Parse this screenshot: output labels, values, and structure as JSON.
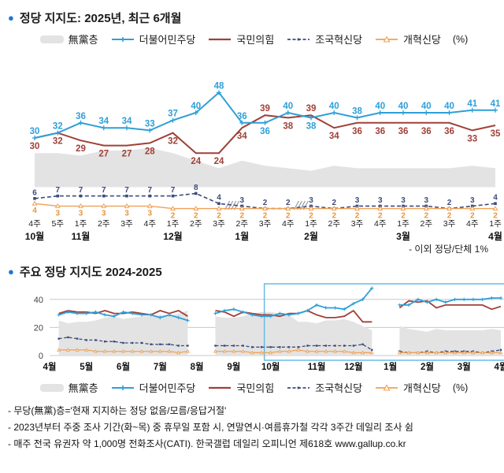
{
  "colors": {
    "bullet": "#1f78d1",
    "grid": "#c8c8c8",
    "highlight_box": "#66bce8",
    "hatch": "#9aa0a8",
    "axis_text": "#222222",
    "orange_label": "#e8963c",
    "blue": "#2f9fd8",
    "red": "#a04038",
    "navy": "#3c4b7d",
    "orange": "#f0a153",
    "gray_band": "#e3e3e3"
  },
  "header1": {
    "title": "정당 지지도: 2025년, 최근 6개월"
  },
  "header2": {
    "title": "주요 정당 지지도 2024-2025"
  },
  "legend_unit": "(%)",
  "footnotes": [
    "- 무당(無黨)층='현재 지지하는 정당 없음/모름/응답거절'",
    "- 2023년부터 주중 조사 기간(화~목) 중 휴무일 포함 시, 연말연시·여름휴가철 각각 3주간 데일리 조사 쉼",
    "- 매주 전국 유권자 약 1,000명 전화조사(CATI). 한국갤럽 데일리 오피니언 제618호 www.gallup.co.kr"
  ],
  "chart_data": [
    {
      "type": "line",
      "title": "정당 지지도: 2025년, 최근 6개월",
      "note": "- 이외 정당/단체 1%",
      "ylim": [
        0,
        50
      ],
      "band_floor": 10.5,
      "x_weeks": [
        "4주",
        "5주",
        "1주",
        "2주",
        "3주",
        "4주",
        "1주",
        "2주",
        "3주",
        "2주",
        "3주",
        "4주",
        "1주",
        "2주",
        "3주",
        "4주",
        "1주",
        "2주",
        "3주",
        "4주",
        "1주"
      ],
      "x_months": [
        {
          "label": "10월",
          "index": 0
        },
        {
          "label": "11월",
          "index": 2
        },
        {
          "label": "12월",
          "index": 6
        },
        {
          "label": "1월",
          "index": 9
        },
        {
          "label": "2월",
          "index": 12
        },
        {
          "label": "3월",
          "index": 16
        },
        {
          "label": "4월",
          "index": 20
        }
      ],
      "breaks_after_index": [
        8,
        11
      ],
      "series": [
        {
          "key": "mudang",
          "name": "無黨층",
          "color": "#e3e3e3",
          "swatch": "band",
          "values": [
            24,
            24,
            23,
            25,
            25,
            26,
            24,
            21,
            18,
            21,
            19,
            18,
            17,
            19,
            18,
            18,
            18,
            18,
            18,
            19,
            18
          ]
        },
        {
          "key": "minju",
          "name": "더불어민주당",
          "color": "#2f9fd8",
          "swatch": "line-plus",
          "values": [
            30,
            32,
            36,
            34,
            34,
            33,
            37,
            40,
            48,
            36,
            36,
            40,
            38,
            40,
            38,
            40,
            40,
            40,
            40,
            41,
            41
          ]
        },
        {
          "key": "kukhim",
          "name": "국민의힘",
          "color": "#a04038",
          "swatch": "line",
          "values": [
            30,
            32,
            29,
            27,
            27,
            28,
            32,
            24,
            24,
            34,
            39,
            38,
            39,
            34,
            36,
            36,
            36,
            36,
            36,
            33,
            35
          ]
        },
        {
          "key": "jokuk",
          "name": "조국혁신당",
          "color": "#3c4b7d",
          "swatch": "dashed",
          "values": [
            6,
            7,
            7,
            7,
            7,
            7,
            7,
            8,
            4,
            3,
            2,
            2,
            3,
            2,
            3,
            3,
            3,
            3,
            2,
            3,
            4
          ]
        },
        {
          "key": "gaehyuk",
          "name": "개혁신당",
          "color": "#f0a153",
          "swatch": "line-tri",
          "values": [
            4,
            3,
            3,
            3,
            3,
            3,
            2,
            2,
            2,
            2,
            2,
            2,
            2,
            2,
            2,
            2,
            2,
            2,
            2,
            2,
            2
          ]
        }
      ]
    },
    {
      "type": "line",
      "title": "주요 정당 지지도 2024-2025",
      "yticks": [
        0,
        20,
        40
      ],
      "ylim": [
        0,
        50
      ],
      "x_months": [
        "4월",
        "5월",
        "6월",
        "7월",
        "8월",
        "9월",
        "10월",
        "11월",
        "12월",
        "1월",
        "2월",
        "3월",
        "4월"
      ],
      "month_start_indices": [
        0,
        4,
        8,
        12,
        16,
        20,
        24,
        29,
        33,
        37,
        41,
        45,
        49
      ],
      "highlight_start_index": 24,
      "series": [
        {
          "key": "mudang",
          "name": "無黨층",
          "color": "#e3e3e3",
          "swatch": "band",
          "values": [
            null,
            25,
            23,
            24,
            24,
            25,
            27,
            28,
            26,
            27,
            28,
            28,
            29,
            28,
            30,
            32,
            null,
            null,
            28,
            27,
            27,
            28,
            30,
            31,
            31,
            30,
            29,
            24,
            24,
            23,
            25,
            25,
            26,
            24,
            21,
            18,
            null,
            null,
            21,
            19,
            18,
            17,
            19,
            18,
            18,
            18,
            18,
            18,
            19,
            18
          ]
        },
        {
          "key": "minju",
          "name": "더불어민주당",
          "color": "#2f9fd8",
          "swatch": "line-plus",
          "values": [
            null,
            29,
            31,
            30,
            30,
            31,
            29,
            28,
            31,
            30,
            29,
            29,
            27,
            29,
            27,
            25,
            null,
            null,
            30,
            32,
            33,
            31,
            29,
            28,
            28,
            30,
            29,
            30,
            32,
            36,
            34,
            34,
            33,
            37,
            40,
            48,
            null,
            null,
            36,
            36,
            40,
            38,
            40,
            38,
            40,
            40,
            40,
            40,
            41,
            41
          ]
        },
        {
          "key": "kukhim",
          "name": "국민의힘",
          "color": "#a04038",
          "swatch": "line",
          "values": [
            null,
            30,
            32,
            31,
            31,
            30,
            32,
            30,
            30,
            31,
            30,
            29,
            32,
            30,
            32,
            28,
            null,
            null,
            32,
            31,
            28,
            31,
            30,
            29,
            29,
            28,
            30,
            30,
            32,
            29,
            27,
            27,
            28,
            32,
            24,
            24,
            null,
            null,
            34,
            39,
            38,
            39,
            34,
            36,
            36,
            36,
            36,
            36,
            33,
            35
          ]
        },
        {
          "key": "jokuk",
          "name": "조국혁신당",
          "color": "#3c4b7d",
          "swatch": "dashed",
          "values": [
            null,
            12,
            13,
            12,
            11,
            11,
            10,
            10,
            9,
            9,
            9,
            8,
            8,
            8,
            7,
            7,
            null,
            null,
            7,
            7,
            7,
            7,
            6,
            6,
            6,
            6,
            6,
            6,
            7,
            7,
            7,
            7,
            7,
            7,
            8,
            4,
            null,
            null,
            3,
            2,
            2,
            3,
            2,
            3,
            3,
            3,
            3,
            2,
            3,
            4
          ]
        },
        {
          "key": "gaehyuk",
          "name": "개혁신당",
          "color": "#f0a153",
          "swatch": "line-tri",
          "values": [
            null,
            4,
            4,
            4,
            4,
            3,
            3,
            3,
            3,
            3,
            3,
            3,
            3,
            3,
            2,
            3,
            null,
            null,
            3,
            3,
            3,
            3,
            2,
            2,
            2,
            3,
            3,
            4,
            3,
            3,
            3,
            3,
            3,
            2,
            2,
            2,
            null,
            null,
            2,
            2,
            2,
            2,
            2,
            2,
            2,
            2,
            2,
            2,
            2,
            2
          ]
        }
      ]
    }
  ]
}
